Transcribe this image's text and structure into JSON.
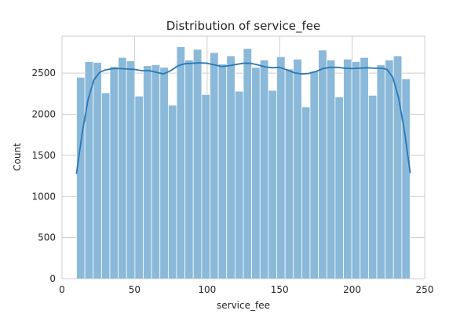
{
  "chart_data": {
    "type": "bar",
    "subtype": "histogram-with-kde",
    "title": "Distribution of service_fee",
    "xlabel": "service_fee",
    "ylabel": "Count",
    "xlim": [
      0,
      250
    ],
    "ylim": [
      0,
      2950
    ],
    "x_ticks": [
      0,
      50,
      100,
      150,
      200,
      250
    ],
    "y_ticks": [
      0,
      500,
      1000,
      1500,
      2000,
      2500
    ],
    "grid": true,
    "bin_range": [
      10,
      240
    ],
    "bin_count": 40,
    "bar_color": "#8ab9d9",
    "bar_edge_color": "#ffffff",
    "line_color": "#2a77b4",
    "bins": [
      {
        "x0": 10.0,
        "x1": 15.75,
        "count": 2450
      },
      {
        "x0": 15.75,
        "x1": 21.5,
        "count": 2640
      },
      {
        "x0": 21.5,
        "x1": 27.25,
        "count": 2630
      },
      {
        "x0": 27.25,
        "x1": 33.0,
        "count": 2260
      },
      {
        "x0": 33.0,
        "x1": 38.75,
        "count": 2580
      },
      {
        "x0": 38.75,
        "x1": 44.5,
        "count": 2690
      },
      {
        "x0": 44.5,
        "x1": 50.25,
        "count": 2650
      },
      {
        "x0": 50.25,
        "x1": 56.0,
        "count": 2220
      },
      {
        "x0": 56.0,
        "x1": 61.75,
        "count": 2590
      },
      {
        "x0": 61.75,
        "x1": 67.5,
        "count": 2600
      },
      {
        "x0": 67.5,
        "x1": 73.25,
        "count": 2570
      },
      {
        "x0": 73.25,
        "x1": 79.0,
        "count": 2110
      },
      {
        "x0": 79.0,
        "x1": 84.75,
        "count": 2820
      },
      {
        "x0": 84.75,
        "x1": 90.5,
        "count": 2660
      },
      {
        "x0": 90.5,
        "x1": 96.25,
        "count": 2790
      },
      {
        "x0": 96.25,
        "x1": 102.0,
        "count": 2240
      },
      {
        "x0": 102.0,
        "x1": 107.75,
        "count": 2750
      },
      {
        "x0": 107.75,
        "x1": 113.5,
        "count": 2610
      },
      {
        "x0": 113.5,
        "x1": 119.25,
        "count": 2710
      },
      {
        "x0": 119.25,
        "x1": 125.0,
        "count": 2280
      },
      {
        "x0": 125.0,
        "x1": 130.75,
        "count": 2800
      },
      {
        "x0": 130.75,
        "x1": 136.5,
        "count": 2570
      },
      {
        "x0": 136.5,
        "x1": 142.25,
        "count": 2660
      },
      {
        "x0": 142.25,
        "x1": 148.0,
        "count": 2290
      },
      {
        "x0": 148.0,
        "x1": 153.75,
        "count": 2700
      },
      {
        "x0": 153.75,
        "x1": 159.5,
        "count": 2550
      },
      {
        "x0": 159.5,
        "x1": 165.25,
        "count": 2670
      },
      {
        "x0": 165.25,
        "x1": 171.0,
        "count": 2090
      },
      {
        "x0": 171.0,
        "x1": 176.75,
        "count": 2520
      },
      {
        "x0": 176.75,
        "x1": 182.5,
        "count": 2780
      },
      {
        "x0": 182.5,
        "x1": 188.25,
        "count": 2660
      },
      {
        "x0": 188.25,
        "x1": 194.0,
        "count": 2210
      },
      {
        "x0": 194.0,
        "x1": 199.75,
        "count": 2670
      },
      {
        "x0": 199.75,
        "x1": 205.5,
        "count": 2640
      },
      {
        "x0": 205.5,
        "x1": 211.25,
        "count": 2690
      },
      {
        "x0": 211.25,
        "x1": 217.0,
        "count": 2230
      },
      {
        "x0": 217.0,
        "x1": 222.75,
        "count": 2600
      },
      {
        "x0": 222.75,
        "x1": 228.5,
        "count": 2660
      },
      {
        "x0": 228.5,
        "x1": 234.25,
        "count": 2710
      },
      {
        "x0": 234.25,
        "x1": 240.0,
        "count": 2430
      }
    ],
    "kde": {
      "x": [
        10,
        14,
        18,
        22,
        26,
        30,
        35,
        40,
        45,
        50,
        55,
        60,
        65,
        70,
        75,
        80,
        85,
        90,
        95,
        100,
        105,
        110,
        115,
        120,
        125,
        130,
        135,
        140,
        145,
        150,
        155,
        160,
        165,
        170,
        175,
        180,
        185,
        190,
        195,
        200,
        205,
        210,
        215,
        220,
        224,
        228,
        232,
        236,
        240
      ],
      "y": [
        1280,
        1780,
        2180,
        2420,
        2510,
        2540,
        2555,
        2555,
        2550,
        2545,
        2530,
        2530,
        2510,
        2490,
        2530,
        2590,
        2615,
        2620,
        2625,
        2620,
        2600,
        2580,
        2590,
        2605,
        2620,
        2620,
        2600,
        2575,
        2565,
        2570,
        2540,
        2505,
        2490,
        2495,
        2520,
        2555,
        2570,
        2570,
        2560,
        2555,
        2560,
        2565,
        2560,
        2560,
        2545,
        2450,
        2200,
        1800,
        1290
      ]
    }
  }
}
